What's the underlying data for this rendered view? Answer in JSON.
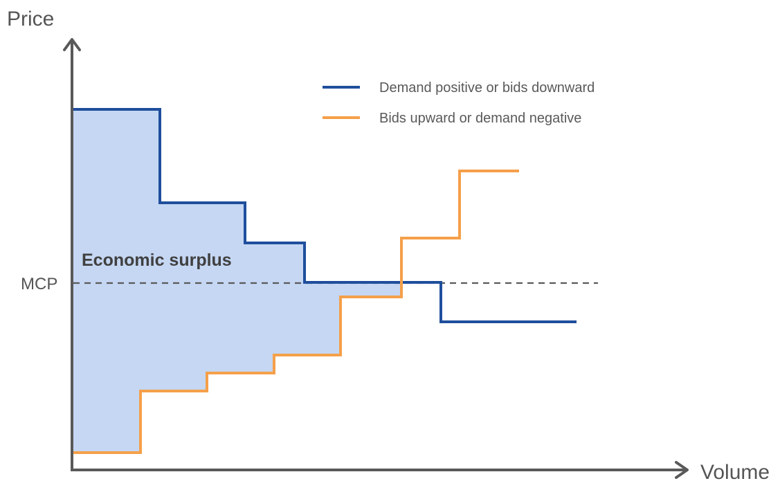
{
  "axes": {
    "y_label": "Price",
    "x_label": "Volume"
  },
  "reference_line": {
    "label": "MCP"
  },
  "region": {
    "label": "Economic surplus",
    "color": "#c5d7f3"
  },
  "legend": [
    {
      "label": "Demand positive or bids downward",
      "color": "#1f4e9c"
    },
    {
      "label": "Bids upward or demand negative",
      "color": "#f5a04a"
    }
  ],
  "colors": {
    "axis": "#595959",
    "reference_line": "#595959"
  }
}
